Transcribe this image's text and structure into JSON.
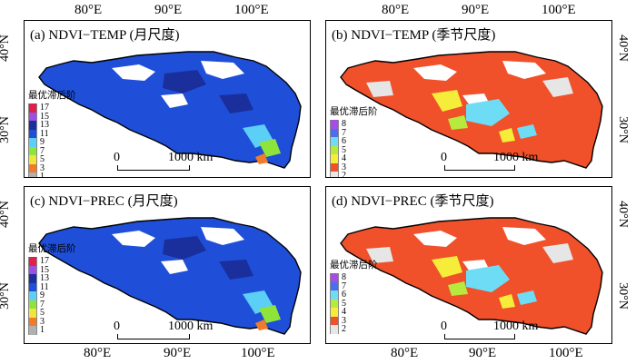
{
  "axes": {
    "lon_top": [
      "80°E",
      "90°E",
      "100°E"
    ],
    "lon_bottom": [
      "80°E",
      "90°E",
      "100°E"
    ],
    "lat": [
      "40°N",
      "30°N"
    ]
  },
  "legend_title": "最优滞后阶",
  "scale": {
    "zero": "0",
    "distance": "1000 km"
  },
  "panels": [
    {
      "title": "(a) NDVI−TEMP (月尺度)",
      "scale_type": "monthly",
      "dominant_color": "#1f4fd8",
      "legend": [
        {
          "value": "17",
          "color": "#e0204a"
        },
        {
          "value": "15",
          "color": "#9b4fe6"
        },
        {
          "value": "13",
          "color": "#1a2f9c"
        },
        {
          "value": "11",
          "color": "#1f4fd8"
        },
        {
          "value": "9",
          "color": "#5bcff5"
        },
        {
          "value": "7",
          "color": "#8fe43a"
        },
        {
          "value": "5",
          "color": "#f0e53b"
        },
        {
          "value": "3",
          "color": "#f07b2a"
        },
        {
          "value": "1",
          "color": "#b0b0b0"
        }
      ]
    },
    {
      "title": "(b) NDVI−TEMP (季节尺度)",
      "scale_type": "seasonal",
      "dominant_color": "#f0502a",
      "legend": [
        {
          "value": "8",
          "color": "#a64de6"
        },
        {
          "value": "7",
          "color": "#4a6ef0"
        },
        {
          "value": "6",
          "color": "#6fdcf5"
        },
        {
          "value": "5",
          "color": "#b7ea3c"
        },
        {
          "value": "4",
          "color": "#f6ec3a"
        },
        {
          "value": "3",
          "color": "#f0502a"
        },
        {
          "value": "2",
          "color": "#e6e6e6"
        }
      ]
    },
    {
      "title": "(c) NDVI−PREC (月尺度)",
      "scale_type": "monthly",
      "dominant_color": "#1f4fd8",
      "legend": [
        {
          "value": "17",
          "color": "#e0204a"
        },
        {
          "value": "15",
          "color": "#9b4fe6"
        },
        {
          "value": "13",
          "color": "#1a2f9c"
        },
        {
          "value": "11",
          "color": "#1f4fd8"
        },
        {
          "value": "9",
          "color": "#5bcff5"
        },
        {
          "value": "7",
          "color": "#8fe43a"
        },
        {
          "value": "5",
          "color": "#f0e53b"
        },
        {
          "value": "3",
          "color": "#f07b2a"
        },
        {
          "value": "1",
          "color": "#b0b0b0"
        }
      ]
    },
    {
      "title": "(d) NDVI−PREC (季节尺度)",
      "scale_type": "seasonal",
      "dominant_color": "#f0502a",
      "legend": [
        {
          "value": "8",
          "color": "#a64de6"
        },
        {
          "value": "7",
          "color": "#4a6ef0"
        },
        {
          "value": "6",
          "color": "#6fdcf5"
        },
        {
          "value": "5",
          "color": "#b7ea3c"
        },
        {
          "value": "4",
          "color": "#f6ec3a"
        },
        {
          "value": "3",
          "color": "#f0502a"
        },
        {
          "value": "2",
          "color": "#e6e6e6"
        }
      ]
    }
  ]
}
